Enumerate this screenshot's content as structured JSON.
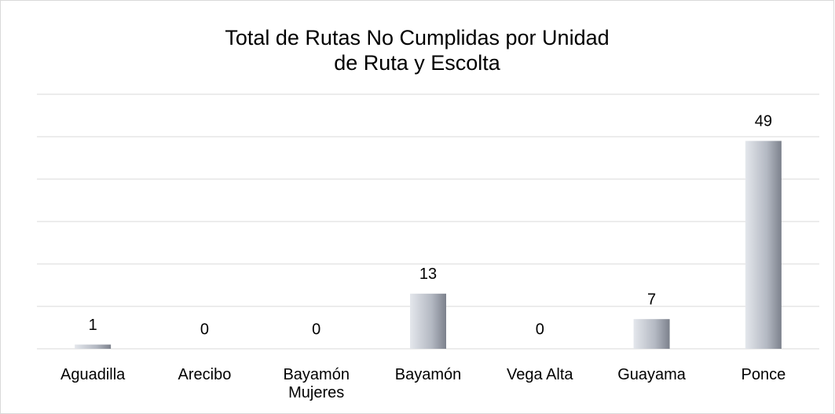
{
  "chart_data": {
    "type": "bar",
    "title": "Total de Rutas No Cumplidas por Unidad de Ruta y Escolta",
    "categories": [
      "Aguadilla",
      "Arecibo",
      "Bayamón Mujeres",
      "Bayamón",
      "Vega Alta",
      "Guayama",
      "Ponce"
    ],
    "values": [
      1,
      0,
      0,
      13,
      0,
      7,
      49
    ],
    "ylim": [
      0,
      60
    ],
    "yticks": [
      0,
      10,
      20,
      30,
      40,
      50,
      60
    ],
    "grid": true
  }
}
